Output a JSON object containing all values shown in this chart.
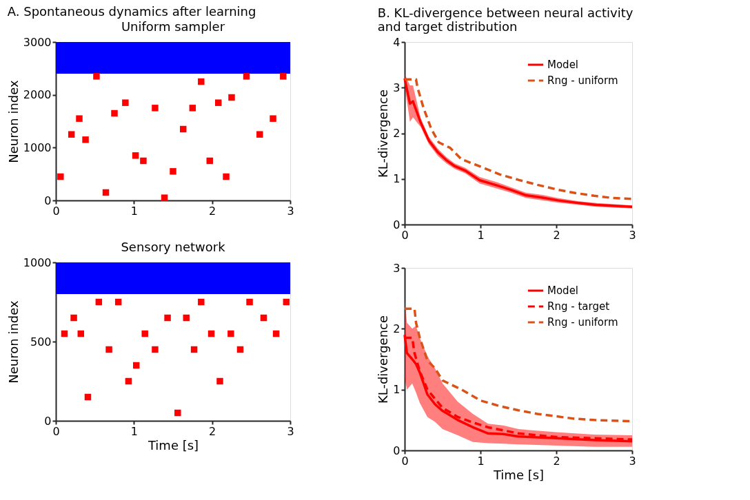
{
  "chart_data": [
    {
      "type": "scatter",
      "title": "Uniform sampler",
      "annotations": [
        "A. Spontaneous dynamics after learning"
      ],
      "ylabel": "Neuron index",
      "xlim": [
        0,
        3
      ],
      "xticks": [
        0,
        1,
        2,
        3
      ],
      "ylim": [
        0,
        3000
      ],
      "yticks": [
        0,
        1000,
        2000,
        3000
      ],
      "marker": "square",
      "grid": false,
      "bands": [
        {
          "axis": "y",
          "from": 2400,
          "to": 3000,
          "color": "#0000ff"
        }
      ],
      "series": [
        {
          "color": "#ff0000",
          "x": [
            0.06,
            0.2,
            0.3,
            0.38,
            0.52,
            0.64,
            0.75,
            0.89,
            1.02,
            1.12,
            1.27,
            1.39,
            1.5,
            1.63,
            1.75,
            1.86,
            1.97,
            2.08,
            2.18,
            2.25,
            2.44,
            2.61,
            2.78,
            2.91
          ],
          "values": [
            450,
            1250,
            1550,
            1150,
            2350,
            150,
            1650,
            1850,
            850,
            750,
            1750,
            50,
            550,
            1350,
            1750,
            2250,
            750,
            1850,
            450,
            1950,
            2350,
            1250,
            1550,
            2350
          ]
        }
      ]
    },
    {
      "type": "scatter",
      "title": "Sensory network",
      "xlabel": "Time [s]",
      "ylabel": "Neuron index",
      "xlim": [
        0,
        3
      ],
      "xticks": [
        0,
        1,
        2,
        3
      ],
      "ylim": [
        0,
        1000
      ],
      "yticks": [
        0,
        500,
        1000
      ],
      "marker": "square",
      "grid": false,
      "bands": [
        {
          "axis": "y",
          "from": 800,
          "to": 1000,
          "color": "#0000ff"
        }
      ],
      "series": [
        {
          "color": "#ff0000",
          "x": [
            0.11,
            0.23,
            0.32,
            0.41,
            0.55,
            0.68,
            0.8,
            0.93,
            1.03,
            1.14,
            1.27,
            1.43,
            1.56,
            1.67,
            1.77,
            1.86,
            1.99,
            2.1,
            2.24,
            2.36,
            2.48,
            2.66,
            2.82,
            2.95
          ],
          "values": [
            550,
            650,
            550,
            150,
            750,
            450,
            750,
            250,
            350,
            550,
            450,
            650,
            50,
            650,
            450,
            750,
            550,
            250,
            550,
            450,
            750,
            650,
            550,
            750
          ]
        }
      ]
    },
    {
      "type": "line",
      "title": "B. KL-divergence between neural activity and target distribution",
      "ylabel": "KL-divergence",
      "xlim": [
        0,
        3
      ],
      "xticks": [
        0,
        1,
        2,
        3
      ],
      "ylim": [
        0,
        4
      ],
      "yticks": [
        0,
        1,
        2,
        3,
        4
      ],
      "grid": false,
      "legend": "top right",
      "marker": "none",
      "series": [
        {
          "name": "Model",
          "color": "#ff0000",
          "line_style": "solid",
          "x": [
            0,
            0.07,
            0.11,
            0.21,
            0.32,
            0.44,
            0.55,
            0.66,
            0.8,
            0.99,
            1.23,
            1.4,
            1.6,
            1.82,
            2.02,
            2.3,
            2.53,
            3
          ],
          "values": [
            3.2,
            2.65,
            2.7,
            2.24,
            1.84,
            1.58,
            1.41,
            1.28,
            1.18,
            0.97,
            0.85,
            0.76,
            0.64,
            0.59,
            0.53,
            0.47,
            0.43,
            0.39
          ],
          "lower": [
            3.05,
            2.25,
            2.35,
            2.14,
            1.76,
            1.5,
            1.34,
            1.22,
            1.12,
            0.9,
            0.78,
            0.7,
            0.58,
            0.53,
            0.48,
            0.43,
            0.39,
            0.35
          ],
          "upper": [
            3.3,
            3.05,
            3.05,
            2.34,
            1.92,
            1.66,
            1.48,
            1.34,
            1.24,
            1.04,
            0.92,
            0.82,
            0.7,
            0.65,
            0.58,
            0.51,
            0.47,
            0.42
          ]
        },
        {
          "name": "Rng - uniform",
          "color": "#d95319",
          "line_style": "dashed",
          "x": [
            0,
            0.15,
            0.17,
            0.25,
            0.35,
            0.45,
            0.6,
            0.75,
            1.0,
            1.25,
            1.5,
            1.75,
            2.0,
            2.25,
            2.5,
            2.75,
            3
          ],
          "values": [
            3.18,
            3.18,
            3.0,
            2.55,
            2.1,
            1.8,
            1.68,
            1.43,
            1.27,
            1.1,
            0.98,
            0.87,
            0.77,
            0.69,
            0.63,
            0.58,
            0.56
          ]
        }
      ]
    },
    {
      "type": "line",
      "xlabel": "Time [s]",
      "ylabel": "KL-divergence",
      "xlim": [
        0,
        3
      ],
      "xticks": [
        0,
        1,
        2,
        3
      ],
      "ylim": [
        0,
        3
      ],
      "yticks": [
        0,
        1,
        2,
        3
      ],
      "grid": false,
      "legend": "top right",
      "marker": "none",
      "series": [
        {
          "name": "Model",
          "color": "#ff0000",
          "line_style": "solid",
          "x": [
            0,
            0.03,
            0.1,
            0.15,
            0.2,
            0.3,
            0.4,
            0.5,
            0.7,
            0.9,
            1.1,
            1.3,
            1.5,
            2.0,
            2.5,
            3
          ],
          "values": [
            1.9,
            1.6,
            1.5,
            1.42,
            1.28,
            0.92,
            0.76,
            0.65,
            0.5,
            0.38,
            0.28,
            0.27,
            0.23,
            0.2,
            0.17,
            0.15
          ],
          "lower": [
            1.2,
            1.0,
            1.1,
            0.95,
            0.78,
            0.55,
            0.47,
            0.35,
            0.25,
            0.14,
            0.12,
            0.11,
            0.1,
            0.08,
            0.06,
            0.06
          ],
          "upper": [
            2.5,
            2.1,
            2.0,
            2.05,
            1.85,
            1.55,
            1.35,
            1.1,
            0.8,
            0.6,
            0.44,
            0.41,
            0.35,
            0.3,
            0.26,
            0.25
          ]
        },
        {
          "name": "Rng - target",
          "color": "#ff0000",
          "line_style": "dashed",
          "x": [
            0,
            0.1,
            0.13,
            0.2,
            0.3,
            0.4,
            0.5,
            0.7,
            0.9,
            1.1,
            1.3,
            1.5,
            2.0,
            2.5,
            3
          ],
          "values": [
            1.85,
            1.85,
            1.6,
            1.3,
            1.0,
            0.85,
            0.7,
            0.55,
            0.46,
            0.38,
            0.33,
            0.28,
            0.22,
            0.2,
            0.18
          ]
        },
        {
          "name": "Rng - uniform",
          "color": "#d95319",
          "line_style": "dashed",
          "x": [
            0,
            0.13,
            0.15,
            0.2,
            0.3,
            0.4,
            0.5,
            0.75,
            1.0,
            1.25,
            1.5,
            1.75,
            2.0,
            2.25,
            2.5,
            3
          ],
          "values": [
            2.33,
            2.33,
            2.1,
            1.85,
            1.48,
            1.35,
            1.15,
            1.0,
            0.82,
            0.73,
            0.66,
            0.6,
            0.56,
            0.52,
            0.5,
            0.48
          ]
        }
      ]
    }
  ]
}
